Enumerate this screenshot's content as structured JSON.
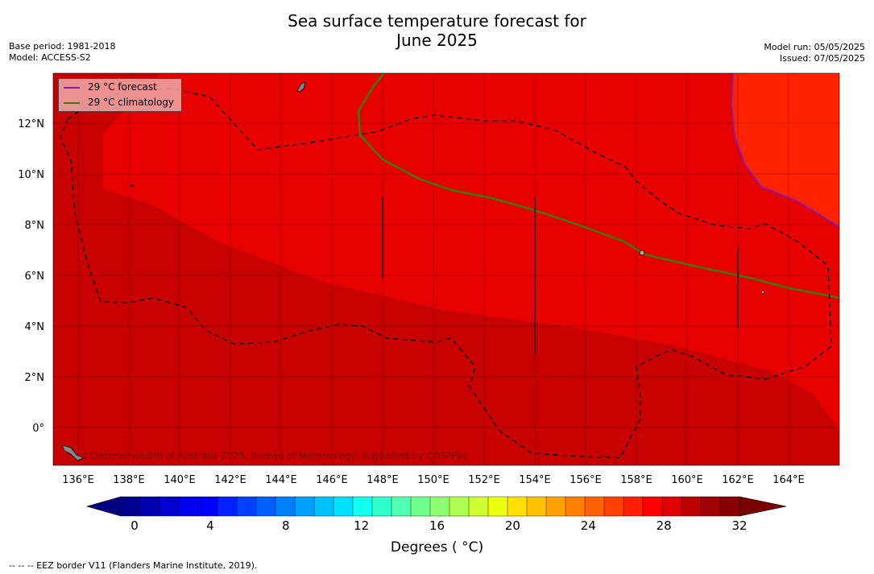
{
  "header": {
    "title_line1": "Sea surface temperature forecast for",
    "title_line2": "June 2025",
    "base_period": "Base period: 1981-2018",
    "model": "Model: ACCESS-S2",
    "model_run": "Model run: 05/05/2025",
    "issued": "Issued: 07/05/2025"
  },
  "map": {
    "lon_ticks": [
      "136°E",
      "138°E",
      "140°E",
      "142°E",
      "144°E",
      "146°E",
      "148°E",
      "150°E",
      "152°E",
      "154°E",
      "156°E",
      "158°E",
      "160°E",
      "162°E",
      "164°E"
    ],
    "lat_ticks": [
      "12°N",
      "10°N",
      "8°N",
      "6°N",
      "4°N",
      "2°N",
      "0°"
    ],
    "copyright": "©Commonwealth of Australia 2025, Bureau of Meteorology, supported by COSPPac",
    "legend": [
      {
        "label": "29 °C  forecast",
        "color": "#8a1aa8"
      },
      {
        "label": "29 °C  climatology",
        "color": "#3a7a10"
      }
    ],
    "fill_colors": {
      "dark": "#c70000",
      "mid": "#e60000",
      "light": "#ff2200"
    }
  },
  "colorbar": {
    "tick_labels": [
      "0",
      "4",
      "8",
      "12",
      "16",
      "20",
      "24",
      "28",
      "32"
    ],
    "colors": [
      "#00008f",
      "#0000b0",
      "#0000d0",
      "#0000ee",
      "#0000ff",
      "#0020ff",
      "#0040ff",
      "#0060ff",
      "#0080ff",
      "#00a0ff",
      "#00c0ff",
      "#00e0ff",
      "#10ffef",
      "#30ffcf",
      "#50ffaf",
      "#70ff8f",
      "#8fff70",
      "#afff50",
      "#cfff30",
      "#efff10",
      "#ffe000",
      "#ffc000",
      "#ffa000",
      "#ff8000",
      "#ff6000",
      "#ff4000",
      "#ff2000",
      "#ff0000",
      "#e00000",
      "#c00000",
      "#a00000",
      "#8a0000"
    ],
    "unit_label": "Degrees ( °C)"
  },
  "footnote": "--  --  -- EEZ border V11 (Flanders Marine Institute, 2019)."
}
